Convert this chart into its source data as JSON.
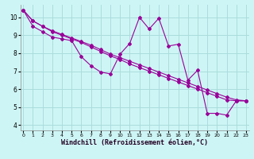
{
  "title": "",
  "xlabel": "Windchill (Refroidissement éolien,°C)",
  "ylabel": "",
  "bg_color": "#cef5f5",
  "line_color": "#990099",
  "grid_color": "#aadddd",
  "x_ticks": [
    0,
    1,
    2,
    3,
    4,
    5,
    6,
    7,
    8,
    9,
    10,
    11,
    12,
    13,
    14,
    15,
    16,
    17,
    18,
    19,
    20,
    21,
    22,
    23
  ],
  "y_ticks": [
    4,
    5,
    6,
    7,
    8,
    9,
    10
  ],
  "xlim": [
    -0.3,
    23.3
  ],
  "ylim": [
    3.7,
    10.7
  ],
  "series1_x": [
    0,
    1,
    2,
    3,
    4,
    5,
    6,
    7,
    8,
    9,
    10,
    11,
    12,
    13,
    14,
    15,
    16,
    17,
    18,
    19,
    20,
    21,
    22,
    23
  ],
  "series1_y": [
    10.4,
    9.5,
    9.2,
    8.9,
    8.8,
    8.7,
    7.8,
    7.3,
    6.95,
    6.85,
    7.95,
    8.55,
    10.0,
    9.35,
    9.95,
    8.4,
    8.5,
    6.5,
    7.05,
    4.65,
    4.65,
    4.55,
    5.35,
    5.35
  ],
  "series2_x": [
    0,
    1,
    2,
    3,
    4,
    5,
    6,
    7,
    8,
    9,
    10,
    11,
    12,
    13,
    14,
    15,
    16,
    17,
    18,
    19,
    20,
    21,
    22,
    23
  ],
  "series2_y": [
    10.4,
    9.8,
    9.5,
    9.25,
    9.05,
    8.85,
    8.65,
    8.45,
    8.2,
    7.95,
    7.75,
    7.55,
    7.35,
    7.15,
    6.95,
    6.75,
    6.55,
    6.35,
    6.15,
    5.95,
    5.75,
    5.55,
    5.4,
    5.35
  ],
  "series3_x": [
    0,
    1,
    2,
    3,
    4,
    5,
    6,
    7,
    8,
    9,
    10,
    11,
    12,
    13,
    14,
    15,
    16,
    17,
    18,
    19,
    20,
    21,
    22,
    23
  ],
  "series3_y": [
    10.4,
    9.8,
    9.5,
    9.2,
    9.0,
    8.8,
    8.6,
    8.35,
    8.1,
    7.85,
    7.65,
    7.4,
    7.2,
    7.0,
    6.8,
    6.6,
    6.4,
    6.2,
    6.0,
    5.8,
    5.6,
    5.4,
    5.35,
    5.35
  ],
  "marker": "D",
  "marker_size": 2.0,
  "line_width": 0.8,
  "tick_fontsize": 5.5,
  "xlabel_fontsize": 6.0
}
